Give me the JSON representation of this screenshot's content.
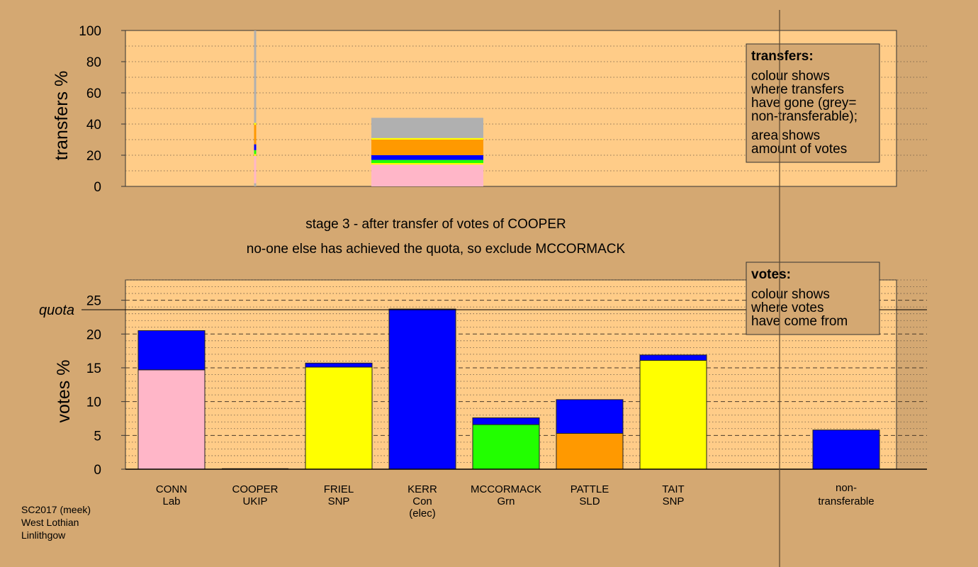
{
  "chart_data": [
    {
      "type": "bar",
      "panel": "transfers",
      "ylabel": "transfers %",
      "ylim": [
        0,
        100
      ],
      "yticks": [
        0,
        20,
        40,
        60,
        80,
        100
      ],
      "legend": {
        "title": "transfers:",
        "lines1": [
          "colour shows",
          "where transfers",
          "have gone (grey=",
          "non-transferable);"
        ],
        "lines2": [
          "area shows",
          "amount of votes"
        ]
      },
      "source_column": "COOPER",
      "transfer_segments": [
        {
          "color": "#ffb6c8",
          "from": 0,
          "to": 14
        },
        {
          "color": "#ffff00",
          "from": 14,
          "to": 15
        },
        {
          "color": "#22ff00",
          "from": 15,
          "to": 17
        },
        {
          "color": "#0000ff",
          "from": 17,
          "to": 20
        },
        {
          "color": "#ff9900",
          "from": 20,
          "to": 30
        },
        {
          "color": "#ffff00",
          "from": 30,
          "to": 31
        },
        {
          "color": "#b0b0b0",
          "from": 31,
          "to": 44
        }
      ]
    },
    {
      "type": "bar",
      "panel": "votes",
      "ylabel": "votes %",
      "ylim": [
        0,
        28
      ],
      "yticks": [
        0,
        5,
        10,
        15,
        20,
        25
      ],
      "quota": 23.6,
      "quota_label": "quota",
      "legend": {
        "title": "votes:",
        "lines": [
          "colour shows",
          "where votes",
          "have come from"
        ]
      },
      "categories": [
        {
          "name": "CONN",
          "party": "Lab",
          "segments": [
            {
              "color": "#ffb6c8",
              "value": 14.7
            },
            {
              "color": "#0000ff",
              "value": 5.8
            }
          ]
        },
        {
          "name": "COOPER",
          "party": "UKIP",
          "segments": []
        },
        {
          "name": "FRIEL",
          "party": "SNP",
          "segments": [
            {
              "color": "#ffff00",
              "value": 15.1
            },
            {
              "color": "#0000ff",
              "value": 0.6
            }
          ]
        },
        {
          "name": "KERR",
          "party": "Con",
          "note": "(elec)",
          "segments": [
            {
              "color": "#0000ff",
              "value": 23.7
            }
          ]
        },
        {
          "name": "MCCORMACK",
          "party": "Grn",
          "segments": [
            {
              "color": "#22ff00",
              "value": 6.6
            },
            {
              "color": "#0000ff",
              "value": 1.0
            }
          ]
        },
        {
          "name": "PATTLE",
          "party": "SLD",
          "segments": [
            {
              "color": "#ff9900",
              "value": 5.3
            },
            {
              "color": "#0000ff",
              "value": 5.0
            }
          ]
        },
        {
          "name": "TAIT",
          "party": "SNP",
          "segments": [
            {
              "color": "#ffff00",
              "value": 16.1
            },
            {
              "color": "#0000ff",
              "value": 0.8
            }
          ]
        }
      ],
      "nontransferable": {
        "label1": "non-",
        "label2": "transferable",
        "segments": [
          {
            "color": "#0000ff",
            "value": 5.8
          }
        ]
      }
    }
  ],
  "messages": {
    "stage": "stage 3 - after transfer of votes of COOPER",
    "action": "no-one else has achieved the quota, so exclude MCCORMACK"
  },
  "credits": [
    "SC2017 (meek)",
    "West Lothian",
    "Linlithgow"
  ],
  "colors": {
    "background": "#d4a872",
    "plot_background": "#ffcc88",
    "non_transferable": "#b0b0b0"
  }
}
